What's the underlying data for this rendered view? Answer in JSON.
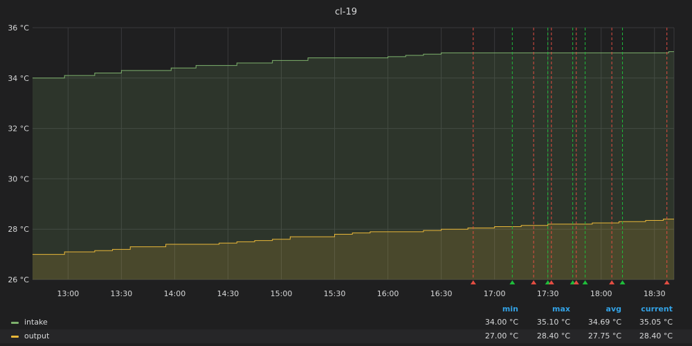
{
  "panel": {
    "title": "cl-19"
  },
  "colors": {
    "background": "#1f1f20",
    "grid": "#3a3a3c",
    "axis_text": "#d8d9da",
    "intake": "#7eb26d",
    "output": "#eab839",
    "annotation_alert": "#e24d42",
    "annotation_ok": "#1fbd3b",
    "legend_header": "#33a2e5"
  },
  "chart_data": {
    "type": "line",
    "title": "cl-19",
    "x_type": "time",
    "x_range": [
      "12:40",
      "18:41"
    ],
    "x_ticks": [
      "13:00",
      "13:30",
      "14:00",
      "14:30",
      "15:00",
      "15:30",
      "16:00",
      "16:30",
      "17:00",
      "17:30",
      "18:00",
      "18:30"
    ],
    "ylim": [
      26,
      36
    ],
    "y_ticks": [
      "26 °C",
      "28 °C",
      "30 °C",
      "32 °C",
      "34 °C",
      "36 °C"
    ],
    "unit": "°C",
    "grid": true,
    "fill": "area",
    "series": [
      {
        "name": "intake",
        "color": "#7eb26d",
        "points": [
          [
            "12:40",
            34.0
          ],
          [
            "12:50",
            34.0
          ],
          [
            "12:58",
            34.1
          ],
          [
            "13:10",
            34.1
          ],
          [
            "13:15",
            34.2
          ],
          [
            "13:23",
            34.2
          ],
          [
            "13:30",
            34.3
          ],
          [
            "13:40",
            34.3
          ],
          [
            "13:50",
            34.3
          ],
          [
            "13:58",
            34.4
          ],
          [
            "14:07",
            34.4
          ],
          [
            "14:12",
            34.5
          ],
          [
            "14:20",
            34.5
          ],
          [
            "14:30",
            34.5
          ],
          [
            "14:35",
            34.6
          ],
          [
            "14:50",
            34.6
          ],
          [
            "14:55",
            34.7
          ],
          [
            "15:05",
            34.7
          ],
          [
            "15:15",
            34.8
          ],
          [
            "15:30",
            34.8
          ],
          [
            "15:45",
            34.8
          ],
          [
            "16:00",
            34.85
          ],
          [
            "16:10",
            34.9
          ],
          [
            "16:20",
            34.95
          ],
          [
            "16:30",
            35.0
          ],
          [
            "16:45",
            35.0
          ],
          [
            "17:00",
            35.0
          ],
          [
            "17:15",
            35.0
          ],
          [
            "17:30",
            35.0
          ],
          [
            "17:45",
            35.0
          ],
          [
            "18:00",
            35.0
          ],
          [
            "18:15",
            35.0
          ],
          [
            "18:30",
            35.0
          ],
          [
            "18:38",
            35.05
          ]
        ]
      },
      {
        "name": "output",
        "color": "#eab839",
        "points": [
          [
            "12:40",
            27.0
          ],
          [
            "12:50",
            27.0
          ],
          [
            "12:58",
            27.1
          ],
          [
            "13:10",
            27.1
          ],
          [
            "13:15",
            27.15
          ],
          [
            "13:25",
            27.2
          ],
          [
            "13:35",
            27.3
          ],
          [
            "13:50",
            27.3
          ],
          [
            "13:55",
            27.4
          ],
          [
            "14:10",
            27.4
          ],
          [
            "14:25",
            27.45
          ],
          [
            "14:35",
            27.5
          ],
          [
            "14:45",
            27.55
          ],
          [
            "14:55",
            27.6
          ],
          [
            "15:05",
            27.7
          ],
          [
            "15:20",
            27.7
          ],
          [
            "15:30",
            27.8
          ],
          [
            "15:40",
            27.85
          ],
          [
            "15:50",
            27.9
          ],
          [
            "16:10",
            27.9
          ],
          [
            "16:20",
            27.95
          ],
          [
            "16:30",
            28.0
          ],
          [
            "16:45",
            28.05
          ],
          [
            "17:00",
            28.1
          ],
          [
            "17:15",
            28.15
          ],
          [
            "17:30",
            28.2
          ],
          [
            "17:45",
            28.2
          ],
          [
            "17:55",
            28.25
          ],
          [
            "18:10",
            28.3
          ],
          [
            "18:25",
            28.35
          ],
          [
            "18:35",
            28.4
          ],
          [
            "18:38",
            28.4
          ]
        ]
      }
    ],
    "annotations": [
      {
        "time": "16:48",
        "state": "alert"
      },
      {
        "time": "17:10",
        "state": "ok"
      },
      {
        "time": "17:22",
        "state": "alert"
      },
      {
        "time": "17:30",
        "state": "ok"
      },
      {
        "time": "17:32",
        "state": "alert"
      },
      {
        "time": "17:44",
        "state": "ok"
      },
      {
        "time": "17:46",
        "state": "alert"
      },
      {
        "time": "17:51",
        "state": "ok"
      },
      {
        "time": "18:06",
        "state": "alert"
      },
      {
        "time": "18:12",
        "state": "ok"
      },
      {
        "time": "18:37",
        "state": "alert"
      }
    ]
  },
  "legend": {
    "headers": {
      "min": "min",
      "max": "max",
      "avg": "avg",
      "current": "current"
    },
    "rows": [
      {
        "name": "intake",
        "color": "#7eb26d",
        "min": "34.00 °C",
        "max": "35.10 °C",
        "avg": "34.69 °C",
        "current": "35.05 °C"
      },
      {
        "name": "output",
        "color": "#eab839",
        "min": "27.00 °C",
        "max": "28.40 °C",
        "avg": "27.75 °C",
        "current": "28.40 °C"
      }
    ]
  }
}
